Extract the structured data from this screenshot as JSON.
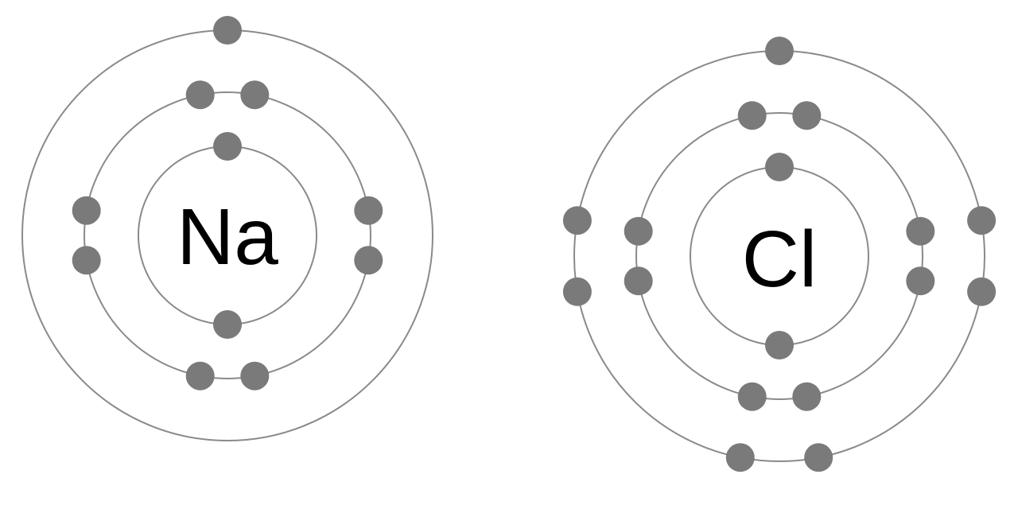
{
  "colors": {
    "background": "#ffffff",
    "shell": "#8a8a8a",
    "electron": "#7a7a7a",
    "symbol": "#000000"
  },
  "atoms": [
    {
      "symbol": "Na",
      "shells": [
        {
          "electrons": 2
        },
        {
          "electrons": 8
        },
        {
          "electrons": 1
        }
      ]
    },
    {
      "symbol": "Cl",
      "shells": [
        {
          "electrons": 2
        },
        {
          "electrons": 8
        },
        {
          "electrons": 7
        }
      ]
    }
  ]
}
